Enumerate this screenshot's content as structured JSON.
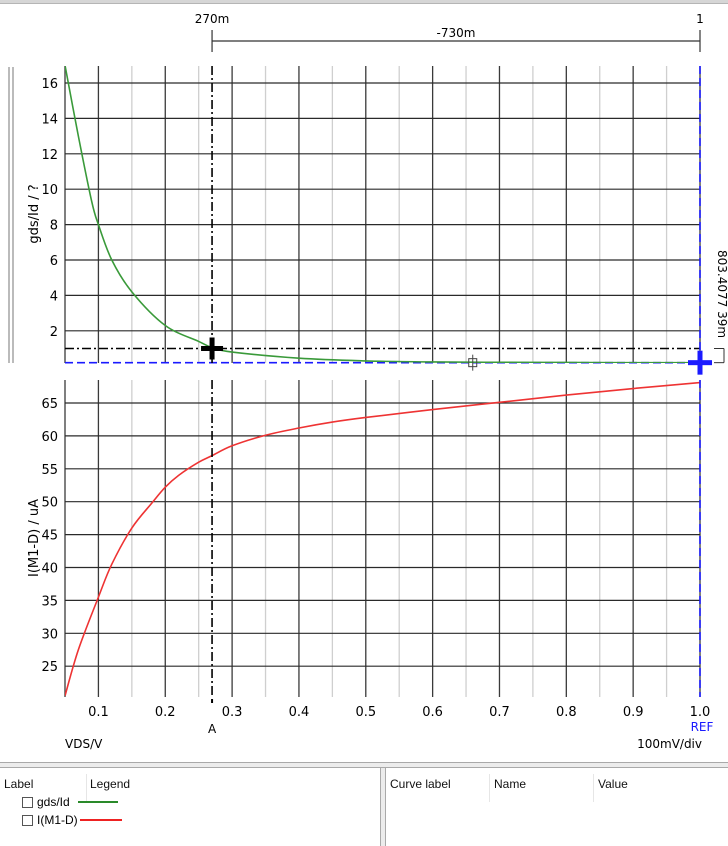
{
  "chart_data": [
    {
      "type": "line",
      "title": "",
      "xlabel": "VDS/V",
      "ylabel": "gds/Id / ?",
      "xlim": [
        0.05,
        1.0
      ],
      "ylim": [
        0.2,
        17
      ],
      "x_ticks": [
        "0.1",
        "0.2",
        "0.3",
        "0.4",
        "0.5",
        "0.6",
        "0.7",
        "0.8",
        "0.9",
        "1.0"
      ],
      "y_ticks": [
        "2",
        "4",
        "6",
        "8",
        "10",
        "12",
        "14",
        "16"
      ],
      "grid": true,
      "series": [
        {
          "name": "gds/Id",
          "color": "#3a9a3a",
          "x": [
            0.05,
            0.07,
            0.09,
            0.1,
            0.12,
            0.15,
            0.2,
            0.25,
            0.27,
            0.3,
            0.4,
            0.5,
            0.6,
            0.7,
            0.8,
            0.9,
            1.0
          ],
          "y": [
            17.0,
            13.0,
            9.3,
            8.0,
            6.0,
            4.2,
            2.3,
            1.4,
            1.05,
            0.8,
            0.45,
            0.3,
            0.24,
            0.22,
            0.21,
            0.2,
            0.2
          ]
        }
      ]
    },
    {
      "type": "line",
      "title": "",
      "xlabel": "VDS/V",
      "ylabel": "I(M1-D) / uA",
      "xlim": [
        0.05,
        1.0
      ],
      "ylim": [
        20,
        68
      ],
      "x_ticks": [
        "0.1",
        "0.2",
        "0.3",
        "0.4",
        "0.5",
        "0.6",
        "0.7",
        "0.8",
        "0.9",
        "1.0"
      ],
      "y_ticks": [
        "25",
        "30",
        "35",
        "40",
        "45",
        "50",
        "55",
        "60",
        "65"
      ],
      "grid": true,
      "series": [
        {
          "name": "I(M1-D)",
          "color": "#ee3333",
          "x": [
            0.05,
            0.07,
            0.1,
            0.12,
            0.15,
            0.18,
            0.2,
            0.22,
            0.25,
            0.27,
            0.3,
            0.35,
            0.4,
            0.45,
            0.5,
            0.6,
            0.7,
            0.8,
            0.9,
            1.0
          ],
          "y": [
            20.5,
            27.5,
            35.5,
            40.5,
            46,
            49.8,
            52.2,
            54,
            56,
            57,
            58.5,
            60.1,
            61.2,
            62.1,
            62.8,
            64.0,
            65.1,
            66.2,
            67.2,
            68.1
          ]
        }
      ]
    }
  ],
  "cursors": {
    "cursor_a": {
      "label": "A",
      "x_label": "270m",
      "x": 0.27,
      "y_gds": 1.0,
      "color": "#000000"
    },
    "cursor_ref": {
      "label": "REF",
      "x_label": "1",
      "x": 1.0,
      "y_gds": 0.2,
      "color": "#1a1aff"
    },
    "delta_x_label": "-730m",
    "delta_y_label": "803.4077 39m"
  },
  "axis": {
    "x_label": "VDS/V",
    "scale_label": "100mV/div",
    "top_ylabel": "gds/Id / ?",
    "bottom_ylabel": "I(M1-D) / uA"
  },
  "legend_panel": {
    "col_label": "Label",
    "col_legend": "Legend",
    "items": [
      {
        "label": "gds/Id",
        "color": "#2a8a2a",
        "checked": false
      },
      {
        "label": "I(M1-D)",
        "color": "#ee2222",
        "checked": false
      }
    ]
  },
  "curve_panel": {
    "col_curve_label": "Curve label",
    "col_name": "Name",
    "col_value": "Value"
  }
}
